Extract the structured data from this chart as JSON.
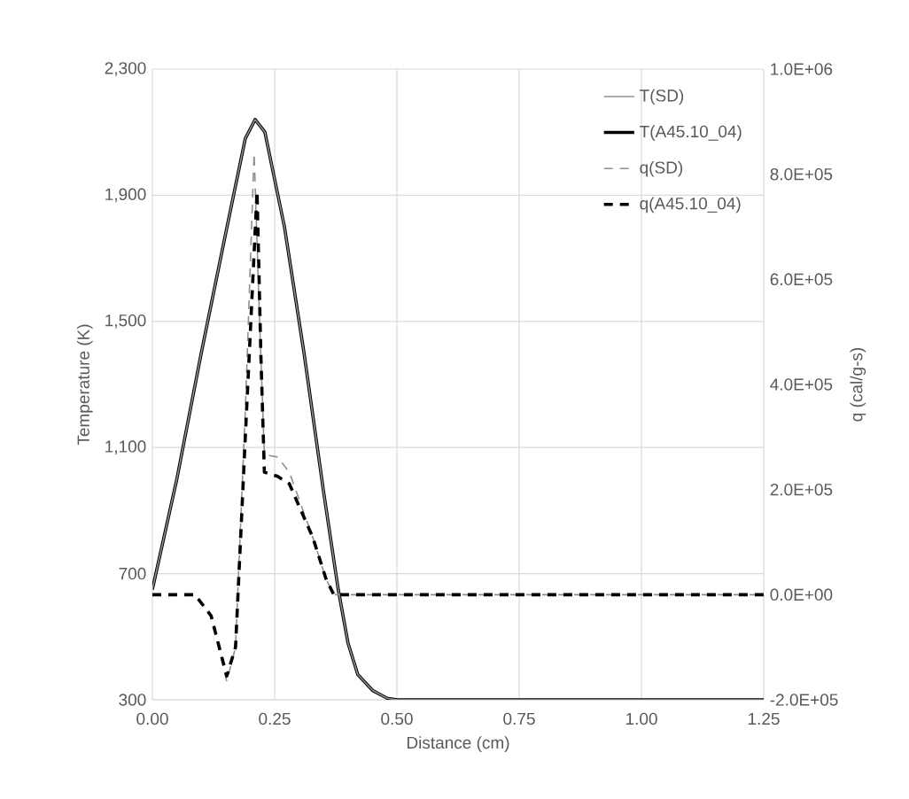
{
  "chart_data": {
    "type": "line",
    "xlabel": "Distance (cm)",
    "ylabel": "Temperature (K)",
    "y2label": "q (cal/g-s)",
    "xlim": [
      0,
      1.25
    ],
    "ylim": [
      300,
      2300
    ],
    "y2lim": [
      -200000,
      1000000
    ],
    "xticks": [
      {
        "value": 0,
        "label": "0.00"
      },
      {
        "value": 0.25,
        "label": "0.25"
      },
      {
        "value": 0.5,
        "label": "0.50"
      },
      {
        "value": 0.75,
        "label": "0.75"
      },
      {
        "value": 1,
        "label": "1.00"
      },
      {
        "value": 1.25,
        "label": "1.25"
      }
    ],
    "yticks": [
      300,
      700,
      {
        "value": 1100,
        "label": "1,100"
      },
      {
        "value": 1500,
        "label": "1,500"
      },
      {
        "value": 1900,
        "label": "1,900"
      },
      {
        "value": 2300,
        "label": "2,300"
      }
    ],
    "y2ticks": [
      {
        "value": -200000,
        "label": "-2.0E+05"
      },
      {
        "value": 0,
        "label": "0.0E+00"
      },
      {
        "value": 200000,
        "label": "2.0E+05"
      },
      {
        "value": 400000,
        "label": "4.0E+05"
      },
      {
        "value": 600000,
        "label": "6.0E+05"
      },
      {
        "value": 800000,
        "label": "8.0E+05"
      },
      {
        "value": 1000000,
        "label": "1.0E+06"
      }
    ],
    "grid": true,
    "legend": "top right",
    "series": [
      {
        "name": "T(SD)",
        "color": "#909090",
        "line_style": "solid",
        "x": [
          0,
          0.05,
          0.1,
          0.15,
          0.19,
          0.21,
          0.23,
          0.27,
          0.31,
          0.35,
          0.38,
          0.4,
          0.42,
          0.45,
          0.48,
          0.5,
          1.25
        ],
        "values": [
          650,
          1000,
          1400,
          1780,
          2080,
          2140,
          2100,
          1800,
          1400,
          960,
          650,
          480,
          380,
          330,
          305,
          300,
          300
        ]
      },
      {
        "name": "T(A45.10_04)",
        "color": "#000000",
        "line_style": "solid",
        "x": [
          0,
          0.05,
          0.1,
          0.15,
          0.19,
          0.21,
          0.23,
          0.27,
          0.31,
          0.35,
          0.38,
          0.4,
          0.42,
          0.45,
          0.48,
          0.5,
          1.25
        ],
        "values": [
          650,
          1000,
          1400,
          1780,
          2080,
          2140,
          2100,
          1800,
          1400,
          960,
          650,
          480,
          380,
          330,
          305,
          300,
          300
        ]
      },
      {
        "name": "q(SD)",
        "color": "#909090",
        "line_style": "dashed",
        "axis": "y2",
        "x": [
          0,
          0.087,
          0.12,
          0.152,
          0.17,
          0.19,
          0.208,
          0.22,
          0.229,
          0.256,
          0.28,
          0.328,
          0.355,
          0.371,
          1.25
        ],
        "values": [
          0,
          0,
          -40000,
          -165000,
          -100000,
          350000,
          840000,
          500000,
          266000,
          262000,
          233000,
          109000,
          30000,
          0,
          0
        ]
      },
      {
        "name": "q(A45.10_04)",
        "color": "#000000",
        "line_style": "dashed",
        "axis": "y2",
        "x": [
          0,
          0.087,
          0.12,
          0.152,
          0.17,
          0.19,
          0.214,
          0.222,
          0.229,
          0.256,
          0.28,
          0.328,
          0.355,
          0.371,
          1.25
        ],
        "values": [
          0,
          0,
          -40000,
          -155000,
          -100000,
          300000,
          767000,
          450000,
          233000,
          225000,
          211000,
          109000,
          30000,
          0,
          0
        ]
      }
    ]
  }
}
